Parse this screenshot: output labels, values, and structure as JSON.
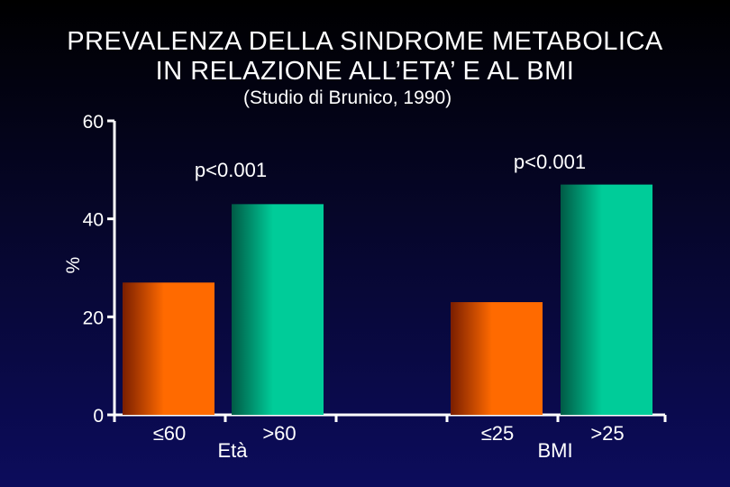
{
  "title_line1": "PREVALENZA DELLA SINDROME METABOLICA",
  "title_line2": "IN RELAZIONE ALL’ETA’ E AL BMI",
  "subtitle": "(Studio di Brunico, 1990)",
  "chart_data": {
    "type": "bar",
    "ylabel": "%",
    "ylim": [
      0,
      60
    ],
    "yticks": [
      0,
      20,
      40,
      60
    ],
    "grid": false,
    "legend": "none",
    "groups": [
      {
        "label": "Età",
        "p_value": "p<0.001",
        "bars": [
          {
            "category": "≤60",
            "value": 27,
            "color": "#ff6a00"
          },
          {
            "category": ">60",
            "value": 43,
            "color": "#00cc99"
          }
        ]
      },
      {
        "label": "BMI",
        "p_value": "p<0.001",
        "bars": [
          {
            "category": "≤25",
            "value": 23,
            "color": "#ff6a00"
          },
          {
            "category": ">25",
            "value": 47,
            "color": "#00cc99"
          }
        ]
      }
    ]
  }
}
